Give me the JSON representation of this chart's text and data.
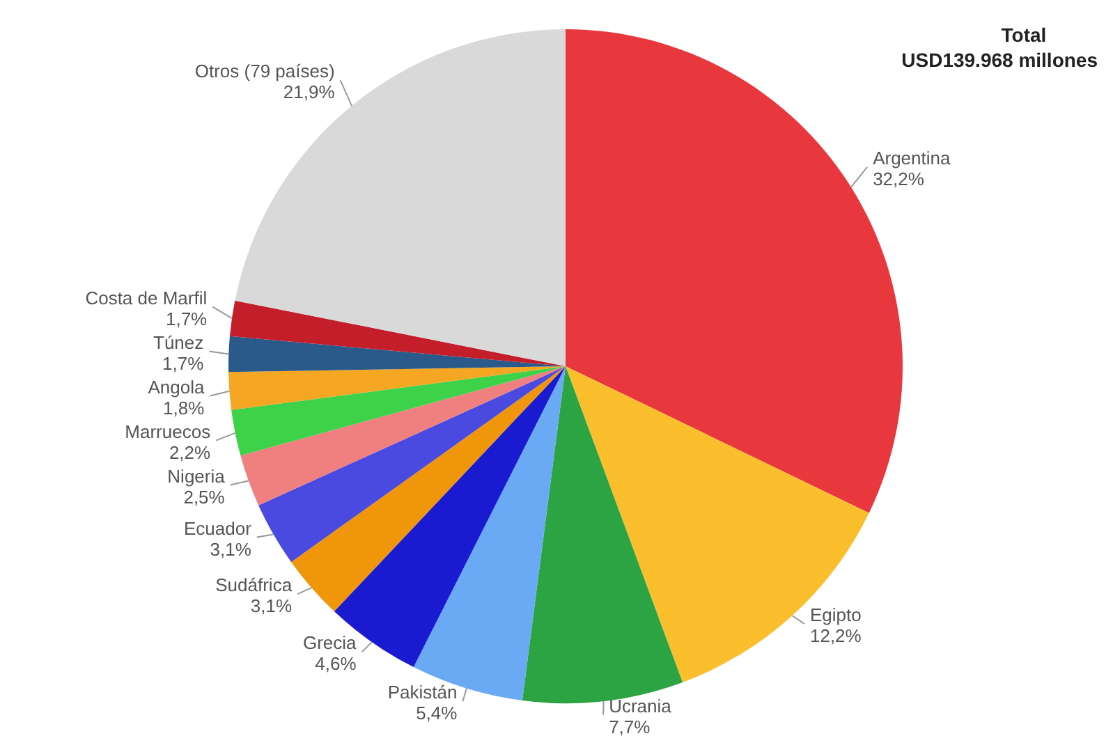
{
  "chart_data": {
    "type": "pie",
    "title": "Total",
    "subtitle": "USD139.968 millones",
    "categories": [
      "Argentina",
      "Egipto",
      "Ucrania",
      "Pakistán",
      "Grecia",
      "Sudáfrica",
      "Ecuador",
      "Nigeria",
      "Marruecos",
      "Angola",
      "Túnez",
      "Costa de Marfil",
      "Otros (79 países)"
    ],
    "values": [
      32.2,
      12.2,
      7.7,
      5.4,
      4.6,
      3.1,
      3.1,
      2.5,
      2.2,
      1.8,
      1.7,
      1.7,
      21.9
    ],
    "value_labels": [
      "32,2%",
      "12,2%",
      "7,7%",
      "5,4%",
      "4,6%",
      "3,1%",
      "3,1%",
      "2,5%",
      "2,2%",
      "1,8%",
      "1,7%",
      "1,7%",
      "21,9%"
    ],
    "colors": [
      "#e8383d",
      "#fbbf2e",
      "#2ca444",
      "#6aaaf5",
      "#1a1ad0",
      "#f0960a",
      "#4a4ae0",
      "#f08080",
      "#3ed14a",
      "#f5a623",
      "#2a5a8a",
      "#c41e2a",
      "#d9d9d9"
    ]
  }
}
